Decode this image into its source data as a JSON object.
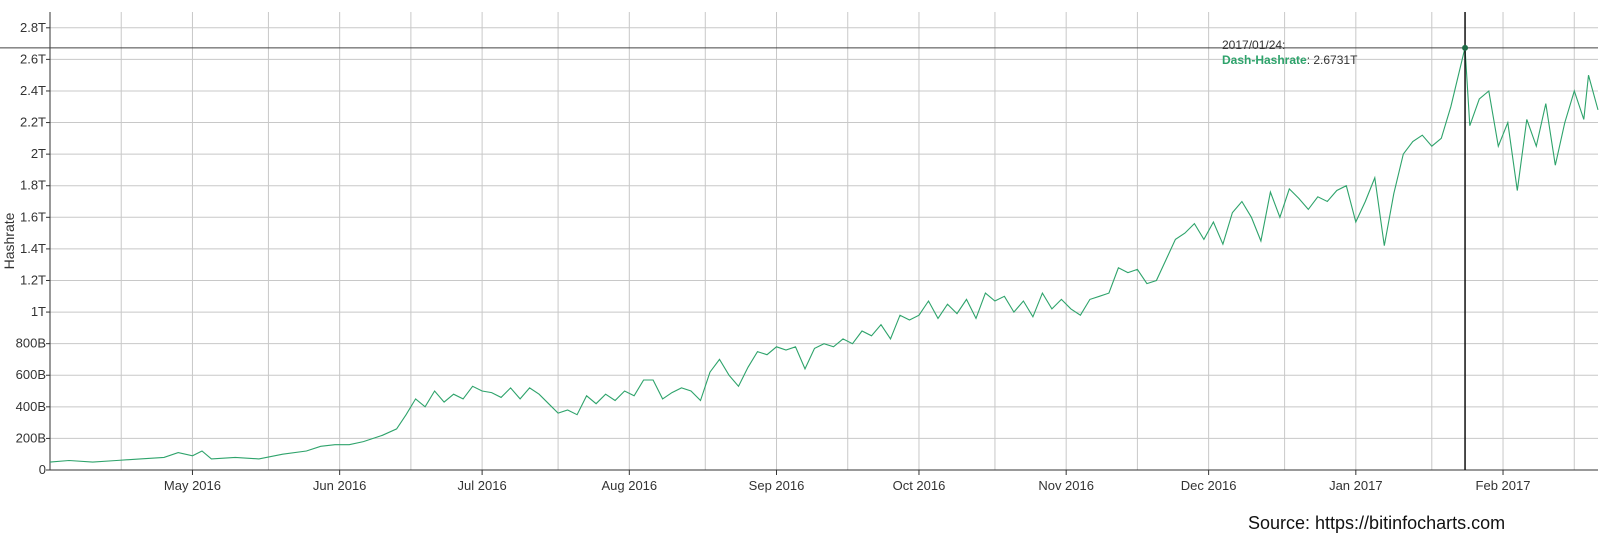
{
  "chart_data": {
    "type": "line",
    "ylabel": "Hashrate",
    "ylim": [
      0,
      2.9
    ],
    "ytick_values": [
      0,
      0.2,
      0.4,
      0.6,
      0.8,
      1.0,
      1.2,
      1.4,
      1.6,
      1.8,
      2.0,
      2.2,
      2.4,
      2.6,
      2.8
    ],
    "ytick_labels": [
      "0",
      "200B",
      "400B",
      "600B",
      "800B",
      "1T",
      "1.2T",
      "1.4T",
      "1.6T",
      "1.8T",
      "2T",
      "2.2T",
      "2.4T",
      "2.6T",
      "2.8T"
    ],
    "y_unit": "T",
    "xlim": [
      "2016-04-01",
      "2017-02-21"
    ],
    "xticks": [
      {
        "date": "2016-05-01",
        "label": "May 2016"
      },
      {
        "date": "2016-06-01",
        "label": "Jun 2016"
      },
      {
        "date": "2016-07-01",
        "label": "Jul 2016"
      },
      {
        "date": "2016-08-01",
        "label": "Aug 2016"
      },
      {
        "date": "2016-09-01",
        "label": "Sep 2016"
      },
      {
        "date": "2016-10-01",
        "label": "Oct 2016"
      },
      {
        "date": "2016-11-01",
        "label": "Nov 2016"
      },
      {
        "date": "2016-12-01",
        "label": "Dec 2016"
      },
      {
        "date": "2017-01-01",
        "label": "Jan 2017"
      },
      {
        "date": "2017-02-01",
        "label": "Feb 2017"
      }
    ],
    "grid": true,
    "series": [
      {
        "name": "Dash-Hashrate",
        "color": "#2ea36b",
        "points": [
          [
            "2016-04-01",
            0.05
          ],
          [
            "2016-04-05",
            0.06
          ],
          [
            "2016-04-10",
            0.05
          ],
          [
            "2016-04-15",
            0.06
          ],
          [
            "2016-04-20",
            0.07
          ],
          [
            "2016-04-25",
            0.08
          ],
          [
            "2016-04-28",
            0.11
          ],
          [
            "2016-05-01",
            0.09
          ],
          [
            "2016-05-03",
            0.12
          ],
          [
            "2016-05-05",
            0.07
          ],
          [
            "2016-05-10",
            0.08
          ],
          [
            "2016-05-15",
            0.07
          ],
          [
            "2016-05-20",
            0.1
          ],
          [
            "2016-05-25",
            0.12
          ],
          [
            "2016-05-28",
            0.15
          ],
          [
            "2016-05-31",
            0.16
          ],
          [
            "2016-06-03",
            0.16
          ],
          [
            "2016-06-06",
            0.18
          ],
          [
            "2016-06-10",
            0.22
          ],
          [
            "2016-06-13",
            0.26
          ],
          [
            "2016-06-15",
            0.35
          ],
          [
            "2016-06-17",
            0.45
          ],
          [
            "2016-06-19",
            0.4
          ],
          [
            "2016-06-21",
            0.5
          ],
          [
            "2016-06-23",
            0.43
          ],
          [
            "2016-06-25",
            0.48
          ],
          [
            "2016-06-27",
            0.45
          ],
          [
            "2016-06-29",
            0.53
          ],
          [
            "2016-07-01",
            0.5
          ],
          [
            "2016-07-03",
            0.49
          ],
          [
            "2016-07-05",
            0.46
          ],
          [
            "2016-07-07",
            0.52
          ],
          [
            "2016-07-09",
            0.45
          ],
          [
            "2016-07-11",
            0.52
          ],
          [
            "2016-07-13",
            0.48
          ],
          [
            "2016-07-15",
            0.42
          ],
          [
            "2016-07-17",
            0.36
          ],
          [
            "2016-07-19",
            0.38
          ],
          [
            "2016-07-21",
            0.35
          ],
          [
            "2016-07-23",
            0.47
          ],
          [
            "2016-07-25",
            0.42
          ],
          [
            "2016-07-27",
            0.48
          ],
          [
            "2016-07-29",
            0.44
          ],
          [
            "2016-07-31",
            0.5
          ],
          [
            "2016-08-02",
            0.47
          ],
          [
            "2016-08-04",
            0.57
          ],
          [
            "2016-08-06",
            0.57
          ],
          [
            "2016-08-08",
            0.45
          ],
          [
            "2016-08-10",
            0.49
          ],
          [
            "2016-08-12",
            0.52
          ],
          [
            "2016-08-14",
            0.5
          ],
          [
            "2016-08-16",
            0.44
          ],
          [
            "2016-08-18",
            0.62
          ],
          [
            "2016-08-20",
            0.7
          ],
          [
            "2016-08-22",
            0.6
          ],
          [
            "2016-08-24",
            0.53
          ],
          [
            "2016-08-26",
            0.65
          ],
          [
            "2016-08-28",
            0.75
          ],
          [
            "2016-08-30",
            0.73
          ],
          [
            "2016-09-01",
            0.78
          ],
          [
            "2016-09-03",
            0.76
          ],
          [
            "2016-09-05",
            0.78
          ],
          [
            "2016-09-07",
            0.64
          ],
          [
            "2016-09-09",
            0.77
          ],
          [
            "2016-09-11",
            0.8
          ],
          [
            "2016-09-13",
            0.78
          ],
          [
            "2016-09-15",
            0.83
          ],
          [
            "2016-09-17",
            0.8
          ],
          [
            "2016-09-19",
            0.88
          ],
          [
            "2016-09-21",
            0.85
          ],
          [
            "2016-09-23",
            0.92
          ],
          [
            "2016-09-25",
            0.83
          ],
          [
            "2016-09-27",
            0.98
          ],
          [
            "2016-09-29",
            0.95
          ],
          [
            "2016-10-01",
            0.98
          ],
          [
            "2016-10-03",
            1.07
          ],
          [
            "2016-10-05",
            0.96
          ],
          [
            "2016-10-07",
            1.05
          ],
          [
            "2016-10-09",
            0.99
          ],
          [
            "2016-10-11",
            1.08
          ],
          [
            "2016-10-13",
            0.96
          ],
          [
            "2016-10-15",
            1.12
          ],
          [
            "2016-10-17",
            1.07
          ],
          [
            "2016-10-19",
            1.1
          ],
          [
            "2016-10-21",
            1.0
          ],
          [
            "2016-10-23",
            1.07
          ],
          [
            "2016-10-25",
            0.97
          ],
          [
            "2016-10-27",
            1.12
          ],
          [
            "2016-10-29",
            1.02
          ],
          [
            "2016-10-31",
            1.08
          ],
          [
            "2016-11-02",
            1.02
          ],
          [
            "2016-11-04",
            0.98
          ],
          [
            "2016-11-06",
            1.08
          ],
          [
            "2016-11-08",
            1.1
          ],
          [
            "2016-11-10",
            1.12
          ],
          [
            "2016-11-12",
            1.28
          ],
          [
            "2016-11-14",
            1.25
          ],
          [
            "2016-11-16",
            1.27
          ],
          [
            "2016-11-18",
            1.18
          ],
          [
            "2016-11-20",
            1.2
          ],
          [
            "2016-11-22",
            1.33
          ],
          [
            "2016-11-24",
            1.46
          ],
          [
            "2016-11-26",
            1.5
          ],
          [
            "2016-11-28",
            1.56
          ],
          [
            "2016-11-30",
            1.46
          ],
          [
            "2016-12-02",
            1.57
          ],
          [
            "2016-12-04",
            1.43
          ],
          [
            "2016-12-06",
            1.63
          ],
          [
            "2016-12-08",
            1.7
          ],
          [
            "2016-12-10",
            1.6
          ],
          [
            "2016-12-12",
            1.45
          ],
          [
            "2016-12-14",
            1.76
          ],
          [
            "2016-12-16",
            1.6
          ],
          [
            "2016-12-18",
            1.78
          ],
          [
            "2016-12-20",
            1.72
          ],
          [
            "2016-12-22",
            1.65
          ],
          [
            "2016-12-24",
            1.73
          ],
          [
            "2016-12-26",
            1.7
          ],
          [
            "2016-12-28",
            1.77
          ],
          [
            "2016-12-30",
            1.8
          ],
          [
            "2017-01-01",
            1.57
          ],
          [
            "2017-01-03",
            1.7
          ],
          [
            "2017-01-05",
            1.85
          ],
          [
            "2017-01-07",
            1.42
          ],
          [
            "2017-01-09",
            1.75
          ],
          [
            "2017-01-11",
            2.0
          ],
          [
            "2017-01-13",
            2.08
          ],
          [
            "2017-01-15",
            2.12
          ],
          [
            "2017-01-17",
            2.05
          ],
          [
            "2017-01-19",
            2.1
          ],
          [
            "2017-01-21",
            2.3
          ],
          [
            "2017-01-24",
            2.6731
          ],
          [
            "2017-01-25",
            2.18
          ],
          [
            "2017-01-27",
            2.35
          ],
          [
            "2017-01-29",
            2.4
          ],
          [
            "2017-01-31",
            2.05
          ],
          [
            "2017-02-02",
            2.2
          ],
          [
            "2017-02-04",
            1.77
          ],
          [
            "2017-02-06",
            2.22
          ],
          [
            "2017-02-08",
            2.05
          ],
          [
            "2017-02-10",
            2.32
          ],
          [
            "2017-02-12",
            1.93
          ],
          [
            "2017-02-14",
            2.2
          ],
          [
            "2017-02-16",
            2.4
          ],
          [
            "2017-02-18",
            2.22
          ],
          [
            "2017-02-19",
            2.5
          ],
          [
            "2017-02-21",
            2.28
          ]
        ]
      }
    ],
    "crosshair": {
      "date": "2017-01-24",
      "value": 2.6731
    },
    "tooltip": {
      "date_text": "2017/01/24:",
      "series_label": "Dash-Hashrate",
      "value_text": "2.6731T"
    }
  },
  "source": "Source: https://bitinfocharts.com"
}
